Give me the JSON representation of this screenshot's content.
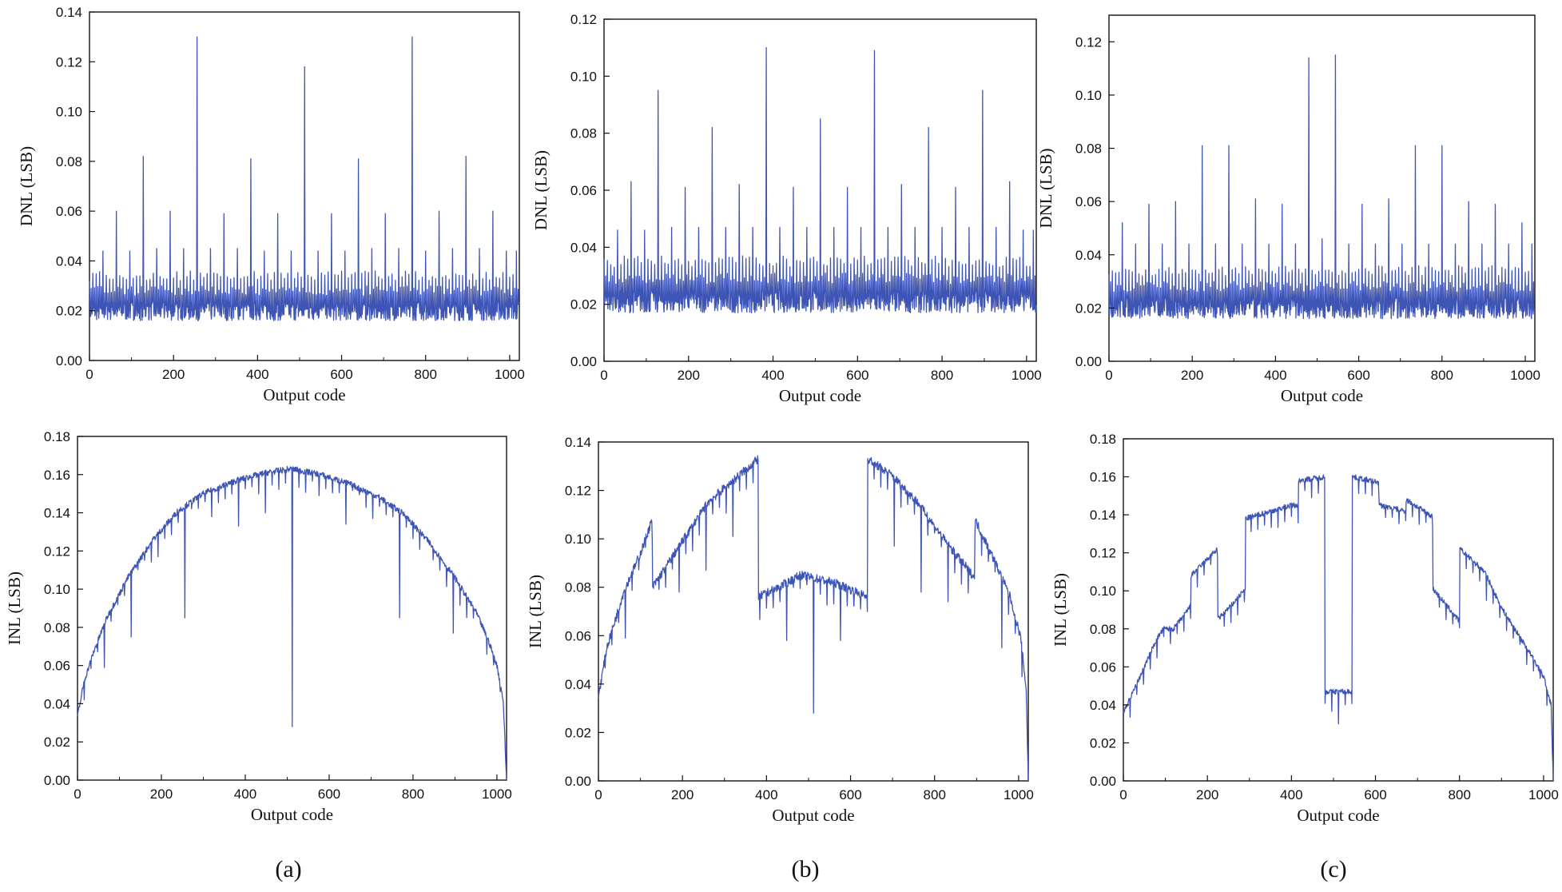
{
  "panel_labels": [
    "(a)",
    "(b)",
    "(c)"
  ],
  "chart_data": [
    {
      "id": "a-dnl",
      "type": "line",
      "ylabel": "DNL (LSB)",
      "xlabel": "Output code",
      "xlim": [
        0,
        1023
      ],
      "ylim": [
        0,
        0.14
      ],
      "xticks": [
        0,
        200,
        400,
        600,
        800,
        1000
      ],
      "yticks": [
        "0.00",
        "0.02",
        "0.04",
        "0.06",
        "0.08",
        "0.10",
        "0.12",
        "0.14"
      ],
      "series": [
        {
          "name": "DNL",
          "color": "#3f55b5",
          "baseline": 0.02,
          "spike_spacing": 32,
          "minor_spike": 0.034,
          "spikes": [
            [
              32,
              0.044
            ],
            [
              64,
              0.06
            ],
            [
              96,
              0.044
            ],
            [
              128,
              0.082
            ],
            [
              160,
              0.045
            ],
            [
              192,
              0.06
            ],
            [
              224,
              0.045
            ],
            [
              256,
              0.13
            ],
            [
              288,
              0.045
            ],
            [
              320,
              0.059
            ],
            [
              352,
              0.045
            ],
            [
              384,
              0.081
            ],
            [
              416,
              0.044
            ],
            [
              448,
              0.059
            ],
            [
              480,
              0.044
            ],
            [
              512,
              0.118
            ],
            [
              544,
              0.044
            ],
            [
              576,
              0.059
            ],
            [
              608,
              0.044
            ],
            [
              640,
              0.081
            ],
            [
              672,
              0.045
            ],
            [
              704,
              0.059
            ],
            [
              736,
              0.045
            ],
            [
              768,
              0.13
            ],
            [
              800,
              0.044
            ],
            [
              832,
              0.06
            ],
            [
              864,
              0.045
            ],
            [
              896,
              0.082
            ],
            [
              928,
              0.045
            ],
            [
              960,
              0.06
            ],
            [
              992,
              0.044
            ],
            [
              1016,
              0.044
            ]
          ]
        }
      ]
    },
    {
      "id": "b-dnl",
      "type": "line",
      "ylabel": "DNL (LSB)",
      "xlabel": "Output code",
      "xlim": [
        0,
        1023
      ],
      "ylim": [
        0,
        0.12
      ],
      "xticks": [
        0,
        200,
        400,
        600,
        800,
        1000
      ],
      "yticks": [
        "0.00",
        "0.02",
        "0.04",
        "0.06",
        "0.08",
        "0.10",
        "0.12"
      ],
      "series": [
        {
          "name": "DNL",
          "color": "#3f55b5",
          "baseline": 0.021,
          "spike_spacing": 16,
          "minor_spike": 0.035,
          "spikes": [
            [
              32,
              0.046
            ],
            [
              64,
              0.063
            ],
            [
              96,
              0.046
            ],
            [
              128,
              0.095
            ],
            [
              160,
              0.047
            ],
            [
              192,
              0.061
            ],
            [
              224,
              0.047
            ],
            [
              256,
              0.082
            ],
            [
              288,
              0.047
            ],
            [
              320,
              0.062
            ],
            [
              352,
              0.047
            ],
            [
              384,
              0.11
            ],
            [
              416,
              0.047
            ],
            [
              448,
              0.061
            ],
            [
              480,
              0.047
            ],
            [
              512,
              0.085
            ],
            [
              544,
              0.047
            ],
            [
              576,
              0.061
            ],
            [
              608,
              0.047
            ],
            [
              640,
              0.109
            ],
            [
              672,
              0.047
            ],
            [
              704,
              0.062
            ],
            [
              736,
              0.047
            ],
            [
              768,
              0.082
            ],
            [
              800,
              0.047
            ],
            [
              832,
              0.061
            ],
            [
              864,
              0.047
            ],
            [
              896,
              0.095
            ],
            [
              928,
              0.047
            ],
            [
              960,
              0.063
            ],
            [
              992,
              0.046
            ],
            [
              1016,
              0.046
            ]
          ]
        }
      ]
    },
    {
      "id": "c-dnl",
      "type": "line",
      "ylabel": "DNL (LSB)",
      "xlabel": "Output code",
      "xlim": [
        0,
        1023
      ],
      "ylim": [
        0,
        0.13
      ],
      "xticks": [
        0,
        200,
        400,
        600,
        800,
        1000
      ],
      "yticks": [
        "0.00",
        "0.02",
        "0.04",
        "0.06",
        "0.08",
        "0.10",
        "0.12"
      ],
      "series": [
        {
          "name": "DNL",
          "color": "#3f55b5",
          "baseline": 0.02,
          "spike_spacing": 32,
          "minor_spike": 0.034,
          "spikes": [
            [
              32,
              0.052
            ],
            [
              64,
              0.044
            ],
            [
              96,
              0.059
            ],
            [
              128,
              0.044
            ],
            [
              160,
              0.06
            ],
            [
              192,
              0.044
            ],
            [
              224,
              0.081
            ],
            [
              256,
              0.044
            ],
            [
              288,
              0.081
            ],
            [
              320,
              0.044
            ],
            [
              352,
              0.061
            ],
            [
              384,
              0.044
            ],
            [
              416,
              0.059
            ],
            [
              448,
              0.044
            ],
            [
              480,
              0.114
            ],
            [
              512,
              0.046
            ],
            [
              544,
              0.115
            ],
            [
              576,
              0.044
            ],
            [
              608,
              0.059
            ],
            [
              640,
              0.044
            ],
            [
              672,
              0.061
            ],
            [
              704,
              0.044
            ],
            [
              736,
              0.081
            ],
            [
              768,
              0.044
            ],
            [
              800,
              0.081
            ],
            [
              832,
              0.044
            ],
            [
              864,
              0.06
            ],
            [
              896,
              0.044
            ],
            [
              928,
              0.059
            ],
            [
              960,
              0.044
            ],
            [
              992,
              0.052
            ],
            [
              1016,
              0.044
            ]
          ]
        }
      ]
    },
    {
      "id": "a-inl",
      "type": "line",
      "ylabel": "INL (LSB)",
      "xlabel": "Output code",
      "xlim": [
        0,
        1023
      ],
      "ylim": [
        0,
        0.18
      ],
      "xticks": [
        0,
        200,
        400,
        600,
        800,
        1000
      ],
      "yticks": [
        "0.00",
        "0.02",
        "0.04",
        "0.06",
        "0.08",
        "0.10",
        "0.12",
        "0.14",
        "0.16",
        "0.18"
      ],
      "series": [
        {
          "name": "INL",
          "color": "#3f55b5",
          "envelope": [
            [
              0,
              0.033
            ],
            [
              16,
              0.052
            ],
            [
              40,
              0.068
            ],
            [
              70,
              0.085
            ],
            [
              120,
              0.106
            ],
            [
              180,
              0.126
            ],
            [
              240,
              0.141
            ],
            [
              300,
              0.15
            ],
            [
              380,
              0.157
            ],
            [
              450,
              0.161
            ],
            [
              510,
              0.163
            ],
            [
              580,
              0.16
            ],
            [
              650,
              0.155
            ],
            [
              720,
              0.148
            ],
            [
              780,
              0.139
            ],
            [
              840,
              0.124
            ],
            [
              900,
              0.106
            ],
            [
              950,
              0.088
            ],
            [
              980,
              0.073
            ],
            [
              1000,
              0.06
            ],
            [
              1015,
              0.042
            ],
            [
              1023,
              0.0
            ]
          ],
          "dips": [
            [
              16,
              0.042
            ],
            [
              64,
              0.059
            ],
            [
              128,
              0.075
            ],
            [
              192,
              0.117
            ],
            [
              256,
              0.085
            ],
            [
              320,
              0.138
            ],
            [
              384,
              0.133
            ],
            [
              448,
              0.14
            ],
            [
              512,
              0.028
            ],
            [
              576,
              0.149
            ],
            [
              640,
              0.134
            ],
            [
              704,
              0.137
            ],
            [
              768,
              0.085
            ],
            [
              832,
              0.127
            ],
            [
              896,
              0.077
            ],
            [
              960,
              0.084
            ]
          ],
          "noise": 0.0016
        }
      ]
    },
    {
      "id": "b-inl",
      "type": "line",
      "ylabel": "INL (LSB)",
      "xlabel": "Output code",
      "xlim": [
        0,
        1023
      ],
      "ylim": [
        0,
        0.14
      ],
      "xticks": [
        0,
        200,
        400,
        600,
        800,
        1000
      ],
      "yticks": [
        "0.00",
        "0.02",
        "0.04",
        "0.06",
        "0.08",
        "0.10",
        "0.12",
        "0.14"
      ],
      "series": [
        {
          "name": "INL",
          "color": "#3f55b5",
          "envelope": [
            [
              0,
              0.035
            ],
            [
              20,
              0.055
            ],
            [
              60,
              0.078
            ],
            [
              100,
              0.094
            ],
            [
              128,
              0.108
            ],
            [
              129,
              0.08
            ],
            [
              200,
              0.099
            ],
            [
              260,
              0.115
            ],
            [
              320,
              0.124
            ],
            [
              380,
              0.133
            ],
            [
              381,
              0.076
            ],
            [
              430,
              0.08
            ],
            [
              480,
              0.085
            ],
            [
              560,
              0.082
            ],
            [
              640,
              0.076
            ],
            [
              641,
              0.133
            ],
            [
              700,
              0.126
            ],
            [
              760,
              0.115
            ],
            [
              830,
              0.098
            ],
            [
              895,
              0.084
            ],
            [
              896,
              0.108
            ],
            [
              940,
              0.092
            ],
            [
              980,
              0.076
            ],
            [
              1005,
              0.059
            ],
            [
              1018,
              0.038
            ],
            [
              1023,
              0.0
            ]
          ],
          "dips": [
            [
              64,
              0.059
            ],
            [
              192,
              0.078
            ],
            [
              256,
              0.087
            ],
            [
              320,
              0.101
            ],
            [
              448,
              0.058
            ],
            [
              512,
              0.028
            ],
            [
              576,
              0.058
            ],
            [
              704,
              0.097
            ],
            [
              768,
              0.078
            ],
            [
              832,
              0.074
            ],
            [
              960,
              0.055
            ]
          ],
          "noise": 0.0018
        }
      ]
    },
    {
      "id": "c-inl",
      "type": "line",
      "ylabel": "INL (LSB)",
      "xlabel": "Output code",
      "xlim": [
        0,
        1023
      ],
      "ylim": [
        0,
        0.18
      ],
      "xticks": [
        0,
        200,
        400,
        600,
        800,
        1000
      ],
      "yticks": [
        "0.00",
        "0.02",
        "0.04",
        "0.06",
        "0.08",
        "0.10",
        "0.12",
        "0.14",
        "0.16",
        "0.18"
      ],
      "series": [
        {
          "name": "INL",
          "color": "#3f55b5",
          "envelope": [
            [
              0,
              0.036
            ],
            [
              40,
              0.055
            ],
            [
              80,
              0.075
            ],
            [
              96,
              0.08
            ],
            [
              120,
              0.08
            ],
            [
              160,
              0.092
            ],
            [
              161,
              0.108
            ],
            [
              224,
              0.122
            ],
            [
              225,
              0.085
            ],
            [
              260,
              0.093
            ],
            [
              290,
              0.101
            ],
            [
              291,
              0.138
            ],
            [
              352,
              0.142
            ],
            [
              400,
              0.145
            ],
            [
              416,
              0.145
            ],
            [
              417,
              0.158
            ],
            [
              479,
              0.16
            ],
            [
              480,
              0.047
            ],
            [
              544,
              0.047
            ],
            [
              545,
              0.16
            ],
            [
              608,
              0.157
            ],
            [
              609,
              0.145
            ],
            [
              672,
              0.142
            ],
            [
              673,
              0.148
            ],
            [
              736,
              0.139
            ],
            [
              737,
              0.101
            ],
            [
              800,
              0.084
            ],
            [
              801,
              0.122
            ],
            [
              860,
              0.11
            ],
            [
              900,
              0.091
            ],
            [
              960,
              0.07
            ],
            [
              1000,
              0.055
            ],
            [
              1018,
              0.04
            ],
            [
              1023,
              0.0
            ]
          ],
          "dips": [
            [
              512,
              0.03
            ],
            [
              96,
              0.076
            ],
            [
              864,
              0.095
            ]
          ],
          "noise": 0.0014
        }
      ]
    }
  ]
}
